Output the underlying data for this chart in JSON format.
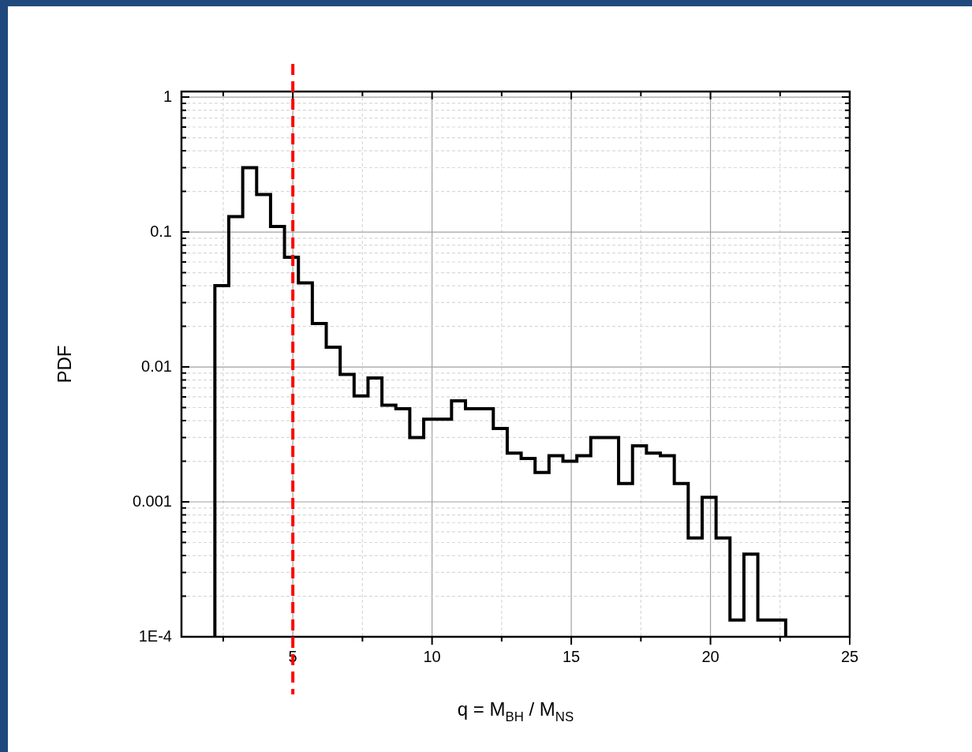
{
  "chart_data": {
    "type": "histogram",
    "xlabel": "q = M$_{BH}$ / M$_{NS}$",
    "ylabel": "PDF",
    "color": "#000000",
    "bins": [
      2.2,
      2.7,
      3.2,
      3.7,
      4.2,
      4.7,
      5.2,
      5.7,
      6.2,
      6.7,
      7.2,
      7.7,
      8.2,
      8.7,
      9.2,
      9.7,
      10.2,
      10.7,
      11.2,
      11.7,
      12.2,
      12.7,
      13.2,
      13.7,
      14.2,
      14.7,
      15.2,
      15.7,
      16.2,
      16.7,
      17.2,
      17.7,
      18.2,
      18.7,
      19.2,
      19.7,
      20.2,
      20.7,
      21.2,
      21.7,
      22.2,
      22.7
    ],
    "values": [
      0.04,
      0.13,
      0.3,
      0.19,
      0.11,
      0.065,
      0.042,
      0.021,
      0.014,
      0.0088,
      0.0061,
      0.0083,
      0.0052,
      0.0049,
      0.003,
      0.0041,
      0.0041,
      0.0056,
      0.0049,
      0.0049,
      0.0035,
      0.0023,
      0.0021,
      0.00165,
      0.0022,
      0.002,
      0.0022,
      0.003,
      0.003,
      0.00137,
      0.0026,
      0.0023,
      0.0022,
      0.00137,
      0.00054,
      0.00108,
      0.00054,
      0.000133,
      0.00041,
      0.000133,
      0.000133
    ],
    "xlim": [
      1,
      25
    ],
    "xticks": [
      {
        "value": 2.5,
        "label": null
      },
      5,
      {
        "value": 7.5,
        "label": null
      },
      10,
      {
        "value": 12.5,
        "label": null
      },
      15,
      {
        "value": 17.5,
        "label": null
      },
      20,
      {
        "value": 22.5,
        "label": null
      },
      25
    ],
    "ylim": [
      0.0001,
      1.1
    ],
    "log": "y",
    "yticks": [
      {
        "value": 0.0001,
        "label": "1E-4"
      },
      {
        "value": 0.0002,
        "label": null
      },
      {
        "value": 0.0003,
        "label": null
      },
      {
        "value": 0.0004,
        "label": null
      },
      {
        "value": 0.0005,
        "label": null
      },
      {
        "value": 0.0006,
        "label": null
      },
      {
        "value": 0.0007,
        "label": null
      },
      {
        "value": 0.0008,
        "label": null
      },
      {
        "value": 0.0009,
        "label": null
      },
      {
        "value": 0.001,
        "label": "0.001"
      },
      {
        "value": 0.002,
        "label": null
      },
      {
        "value": 0.003,
        "label": null
      },
      {
        "value": 0.004,
        "label": null
      },
      {
        "value": 0.005,
        "label": null
      },
      {
        "value": 0.006,
        "label": null
      },
      {
        "value": 0.007,
        "label": null
      },
      {
        "value": 0.008,
        "label": null
      },
      {
        "value": 0.009,
        "label": null
      },
      {
        "value": 0.01,
        "label": "0.01"
      },
      {
        "value": 0.02,
        "label": null
      },
      {
        "value": 0.03,
        "label": null
      },
      {
        "value": 0.04,
        "label": null
      },
      {
        "value": 0.05,
        "label": null
      },
      {
        "value": 0.06,
        "label": null
      },
      {
        "value": 0.07,
        "label": null
      },
      {
        "value": 0.08,
        "label": null
      },
      {
        "value": 0.09,
        "label": null
      },
      {
        "value": 0.1,
        "label": "0.1"
      },
      {
        "value": 0.2,
        "label": null
      },
      {
        "value": 0.3,
        "label": null
      },
      {
        "value": 0.4,
        "label": null
      },
      {
        "value": 0.5,
        "label": null
      },
      {
        "value": 0.6,
        "label": null
      },
      {
        "value": 0.7,
        "label": null
      },
      {
        "value": 0.8,
        "label": null
      },
      {
        "value": 0.9,
        "label": null
      },
      1
    ],
    "grid": true,
    "legend": false,
    "ref_lines": [
      {
        "axis": "x",
        "value": 5,
        "color": "#ff0000",
        "line_style": "dashed"
      }
    ]
  }
}
